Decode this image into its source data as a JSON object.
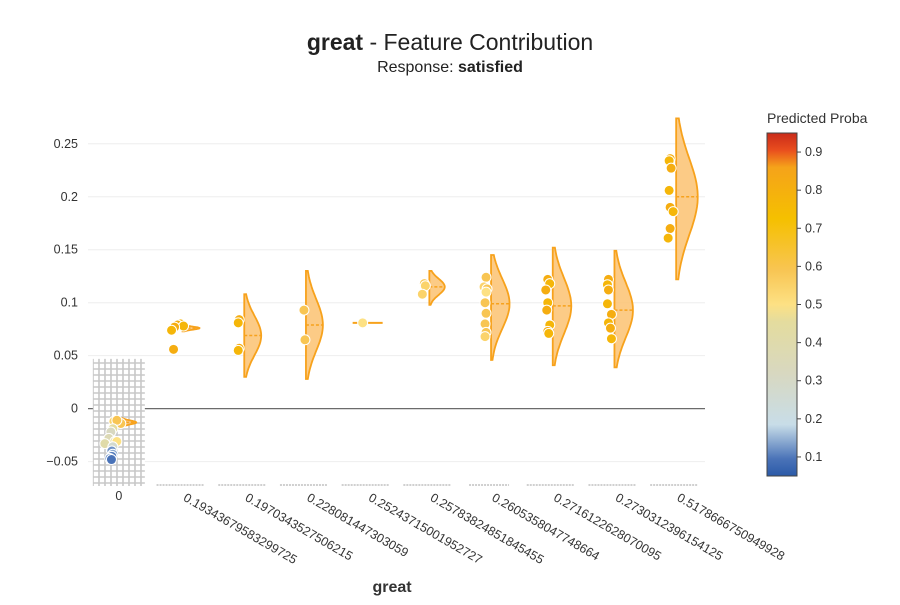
{
  "chart_data": {
    "type": "violin",
    "title_bold": "great",
    "title_rest": " - Feature Contribution",
    "subtitle_prefix": "Response: ",
    "subtitle_bold": "satisfied",
    "xlabel": "great",
    "ylabel": "",
    "yticks": [
      0.25,
      0.2,
      0.15,
      0.1,
      0.05,
      0,
      -0.05
    ],
    "ytick_labels": [
      "0.25",
      "0.2",
      "0.15",
      "0.1",
      "0.05",
      "0",
      "−0.05"
    ],
    "ylim": [
      -0.073,
      0.28
    ],
    "categories": [
      "0",
      "0.1934367958329972​5",
      "0.1970343527506215",
      "0.228081447303059",
      "0.2524371500195272​7",
      "0.2578382485184545​5",
      "0.2605358047748664",
      "0.2716122628070095",
      "0.2730312396154125",
      "0.5178666750949928"
    ],
    "violins": [
      {
        "center": -0.013,
        "min": -0.017,
        "max": -0.009,
        "width_scale": 0.5,
        "points": [
          {
            "y": -0.012,
            "p": 0.55,
            "dx": 0.0
          },
          {
            "y": -0.013,
            "p": 0.5,
            "dx": 0.2
          },
          {
            "y": -0.014,
            "p": 0.6,
            "dx": 0.35
          },
          {
            "y": -0.011,
            "p": 0.6,
            "dx": 0.15
          },
          {
            "y": -0.019,
            "p": 0.45,
            "dx": -0.05
          },
          {
            "y": -0.022,
            "p": 0.3,
            "dx": -0.15
          },
          {
            "y": -0.028,
            "p": 0.35,
            "dx": -0.25
          },
          {
            "y": -0.031,
            "p": 0.45,
            "dx": 0.05
          },
          {
            "y": -0.031,
            "p": 0.5,
            "dx": 0.15
          },
          {
            "y": -0.033,
            "p": 0.4,
            "dx": -0.45
          },
          {
            "y": -0.036,
            "p": 0.25,
            "dx": -0.05
          },
          {
            "y": -0.04,
            "p": 0.08,
            "dx": -0.1
          },
          {
            "y": -0.043,
            "p": 0.1,
            "dx": -0.05
          },
          {
            "y": -0.045,
            "p": 0.06,
            "dx": -0.1
          },
          {
            "y": -0.047,
            "p": 0.08,
            "dx": -0.2
          },
          {
            "y": -0.048,
            "p": 0.05,
            "dx": -0.12
          }
        ]
      },
      {
        "center": 0.076,
        "min": 0.073,
        "max": 0.079,
        "width_scale": 0.55,
        "points": [
          {
            "y": 0.08,
            "p": 0.8,
            "dx": 0.25
          },
          {
            "y": 0.079,
            "p": 0.85,
            "dx": 0.1
          },
          {
            "y": 0.078,
            "p": 0.8,
            "dx": 0.4
          },
          {
            "y": 0.077,
            "p": 0.85,
            "dx": -0.05
          },
          {
            "y": 0.074,
            "p": 0.8,
            "dx": -0.2
          },
          {
            "y": 0.056,
            "p": 0.85,
            "dx": -0.1
          }
        ]
      },
      {
        "center": 0.069,
        "min": 0.03,
        "max": 0.108,
        "width_scale": 0.55,
        "points": [
          {
            "y": 0.084,
            "p": 0.85,
            "dx": 0.1
          },
          {
            "y": 0.081,
            "p": 0.8,
            "dx": 0.05
          },
          {
            "y": 0.057,
            "p": 0.85,
            "dx": 0.1
          },
          {
            "y": 0.055,
            "p": 0.8,
            "dx": 0.05
          }
        ]
      },
      {
        "center": 0.079,
        "min": 0.028,
        "max": 0.13,
        "width_scale": 0.55,
        "points": [
          {
            "y": 0.093,
            "p": 0.6,
            "dx": 0.25
          },
          {
            "y": 0.065,
            "p": 0.6,
            "dx": 0.3
          }
        ]
      },
      {
        "center": 0.081,
        "min": 0.081,
        "max": 0.081,
        "width_scale": 0.0,
        "points": [
          {
            "y": 0.081,
            "p": 0.5,
            "dx": 0.1
          }
        ]
      },
      {
        "center": 0.115,
        "min": 0.098,
        "max": 0.13,
        "width_scale": 0.5,
        "points": [
          {
            "y": 0.118,
            "p": 0.6,
            "dx": 0.1
          },
          {
            "y": 0.116,
            "p": 0.55,
            "dx": 0.15
          },
          {
            "y": 0.108,
            "p": 0.55,
            "dx": 0.0
          }
        ]
      },
      {
        "center": 0.099,
        "min": 0.046,
        "max": 0.145,
        "width_scale": 0.6,
        "points": [
          {
            "y": 0.124,
            "p": 0.6,
            "dx": 0.1
          },
          {
            "y": 0.115,
            "p": 0.55,
            "dx": 0.0
          },
          {
            "y": 0.113,
            "p": 0.6,
            "dx": 0.15
          },
          {
            "y": 0.11,
            "p": 0.5,
            "dx": 0.1
          },
          {
            "y": 0.1,
            "p": 0.6,
            "dx": 0.05
          },
          {
            "y": 0.09,
            "p": 0.6,
            "dx": 0.1
          },
          {
            "y": 0.08,
            "p": 0.6,
            "dx": 0.05
          },
          {
            "y": 0.072,
            "p": 0.6,
            "dx": 0.1
          },
          {
            "y": 0.068,
            "p": 0.55,
            "dx": 0.05
          }
        ]
      },
      {
        "center": 0.097,
        "min": 0.041,
        "max": 0.152,
        "width_scale": 0.6,
        "points": [
          {
            "y": 0.122,
            "p": 0.85,
            "dx": 0.1
          },
          {
            "y": 0.118,
            "p": 0.8,
            "dx": 0.2
          },
          {
            "y": 0.112,
            "p": 0.85,
            "dx": 0.0
          },
          {
            "y": 0.1,
            "p": 0.8,
            "dx": 0.1
          },
          {
            "y": 0.093,
            "p": 0.85,
            "dx": 0.05
          },
          {
            "y": 0.079,
            "p": 0.8,
            "dx": 0.2
          },
          {
            "y": 0.073,
            "p": 0.85,
            "dx": 0.1
          },
          {
            "y": 0.071,
            "p": 0.8,
            "dx": 0.15
          }
        ]
      },
      {
        "center": 0.093,
        "min": 0.039,
        "max": 0.149,
        "width_scale": 0.6,
        "points": [
          {
            "y": 0.122,
            "p": 0.85,
            "dx": 0.05
          },
          {
            "y": 0.117,
            "p": 0.8,
            "dx": 0.0
          },
          {
            "y": 0.112,
            "p": 0.85,
            "dx": 0.05
          },
          {
            "y": 0.099,
            "p": 0.8,
            "dx": 0.0
          },
          {
            "y": 0.089,
            "p": 0.85,
            "dx": 0.2
          },
          {
            "y": 0.081,
            "p": 0.8,
            "dx": 0.05
          },
          {
            "y": 0.076,
            "p": 0.85,
            "dx": 0.15
          },
          {
            "y": 0.066,
            "p": 0.8,
            "dx": 0.2
          }
        ]
      },
      {
        "center": 0.2,
        "min": 0.122,
        "max": 0.274,
        "width_scale": 0.7,
        "points": [
          {
            "y": 0.236,
            "p": 0.85,
            "dx": 0.05
          },
          {
            "y": 0.234,
            "p": 0.8,
            "dx": 0.0
          },
          {
            "y": 0.227,
            "p": 0.85,
            "dx": 0.1
          },
          {
            "y": 0.206,
            "p": 0.8,
            "dx": 0.0
          },
          {
            "y": 0.19,
            "p": 0.85,
            "dx": 0.05
          },
          {
            "y": 0.186,
            "p": 0.8,
            "dx": 0.2
          },
          {
            "y": 0.17,
            "p": 0.85,
            "dx": 0.05
          },
          {
            "y": 0.161,
            "p": 0.8,
            "dx": -0.05
          }
        ]
      }
    ],
    "legend": {
      "title": "Predicted Proba",
      "ticks": [
        0.1,
        0.2,
        0.3,
        0.4,
        0.5,
        0.6,
        0.7,
        0.8,
        0.9
      ],
      "tick_labels": [
        "0.1",
        "0.2",
        "0.3",
        "0.4",
        "0.5",
        "0.6",
        "0.7",
        "0.8",
        "0.9"
      ],
      "range": [
        0.05,
        0.95
      ],
      "colors": {
        "0.0": "#2b5aa8",
        "0.05": "#4a73b8",
        "0.15": "#c8dde8",
        "0.3": "#d8d8c0",
        "0.45": "#e4dc9e",
        "0.5": "#fde184",
        "0.6": "#f8c553",
        "0.75": "#f5c000",
        "0.9": "#f5a31a",
        "0.95": "#e94e1e",
        "1.0": "#c92b1a"
      }
    },
    "colors": {
      "violin_fill": "#fbc271",
      "violin_stroke": "#f7a21c",
      "median": "#f7a21c",
      "gridline": "#eeeeee",
      "zeroline": "#6b6b6b",
      "hatch": "#c8c8c8",
      "text": "#2a3f5f"
    }
  }
}
